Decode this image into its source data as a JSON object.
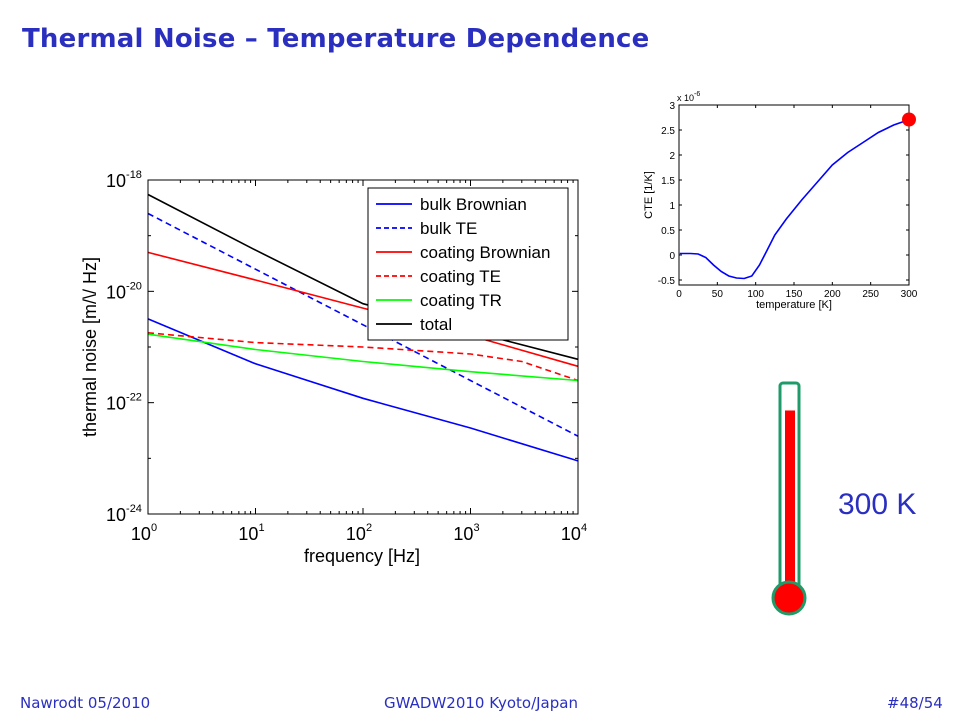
{
  "slide": {
    "title": "Thermal Noise – Temperature Dependence",
    "temperature_label": "300 K",
    "footer_left": "Nawrodt 05/2010",
    "footer_center": "GWADW2010 Kyoto/Japan",
    "footer_right": "#48/54"
  },
  "thermometer": {
    "level_fraction": 0.88,
    "bulb_color": "#ff0000",
    "tube_color": "#1f9b6a"
  },
  "chart_data": [
    {
      "type": "line",
      "xlabel": "frequency [Hz]",
      "ylabel": "thermal noise [m/\\/ Hz]",
      "xscale": "log",
      "yscale": "log",
      "xlim": [
        1,
        10000
      ],
      "ylim": [
        1e-24,
        1e-18
      ],
      "xticks": [
        {
          "base": "10",
          "exp": "0"
        },
        {
          "base": "10",
          "exp": "1"
        },
        {
          "base": "10",
          "exp": "2"
        },
        {
          "base": "10",
          "exp": "3"
        },
        {
          "base": "10",
          "exp": "4"
        }
      ],
      "yticks": [
        {
          "base": "10",
          "exp": "-24"
        },
        {
          "base": "10",
          "exp": "-22"
        },
        {
          "base": "10",
          "exp": "-20"
        },
        {
          "base": "10",
          "exp": "-18"
        }
      ],
      "grid": false,
      "legend_position": "top-right",
      "series": [
        {
          "name": "bulk Brownian",
          "color": "#0000ff",
          "dash": "solid",
          "x": [
            1,
            10,
            100,
            1000,
            10000
          ],
          "y": [
            3.2e-21,
            5e-22,
            1.2e-22,
            3.5e-23,
            9e-24
          ]
        },
        {
          "name": "bulk TE",
          "color": "#0000ff",
          "dash": "dashed",
          "x": [
            1,
            10,
            100,
            1000,
            10000
          ],
          "y": [
            2.5e-19,
            2.5e-20,
            2.5e-21,
            2.5e-22,
            2.5e-23
          ]
        },
        {
          "name": "coating Brownian",
          "color": "#ff0000",
          "dash": "solid",
          "x": [
            1,
            10,
            100,
            1000,
            10000
          ],
          "y": [
            5e-20,
            1.6e-20,
            5e-21,
            1.6e-21,
            4.5e-22
          ]
        },
        {
          "name": "coating TE",
          "color": "#ff0000",
          "dash": "dashed",
          "x": [
            1,
            10,
            100,
            1000,
            3000,
            10000
          ],
          "y": [
            1.8e-21,
            1.2e-21,
            1e-21,
            7.5e-22,
            5.5e-22,
            2.5e-22
          ]
        },
        {
          "name": "coating TR",
          "color": "#00ff00",
          "dash": "solid",
          "x": [
            1,
            10,
            100,
            1000,
            10000
          ],
          "y": [
            1.7e-21,
            9e-22,
            5.5e-22,
            3.6e-22,
            2.5e-22
          ]
        },
        {
          "name": "total",
          "color": "#000000",
          "dash": "solid",
          "x": [
            1,
            10,
            100,
            1000,
            10000
          ],
          "y": [
            5.5e-19,
            5.5e-20,
            6e-21,
            1.9e-21,
            6e-22
          ]
        }
      ]
    },
    {
      "type": "line",
      "xlabel": "temperature [K]",
      "ylabel": "CTE [1/K]",
      "y_multiplier": {
        "base": "x 10",
        "exp": "-6"
      },
      "xlim": [
        0,
        300
      ],
      "ylim": [
        -0.6,
        3
      ],
      "xticks": [
        0,
        50,
        100,
        150,
        200,
        250,
        300
      ],
      "yticks": [
        -0.5,
        0,
        0.5,
        1,
        1.5,
        2,
        2.5,
        3
      ],
      "ytick_labels": [
        "-0.5",
        "0",
        "0.5",
        "1",
        "1.5",
        "2",
        "2.5",
        "3"
      ],
      "grid": false,
      "marker": {
        "x": 300,
        "y": 2.65,
        "color": "#ff0000"
      },
      "series": [
        {
          "color": "#0000ff",
          "x": [
            1,
            15,
            25,
            35,
            45,
            55,
            65,
            75,
            85,
            95,
            105,
            115,
            125,
            140,
            160,
            180,
            200,
            220,
            240,
            260,
            280,
            295
          ],
          "y": [
            0.03,
            0.03,
            0.02,
            -0.05,
            -0.2,
            -0.33,
            -0.42,
            -0.46,
            -0.47,
            -0.42,
            -0.2,
            0.1,
            0.4,
            0.72,
            1.1,
            1.45,
            1.8,
            2.05,
            2.25,
            2.45,
            2.6,
            2.68
          ]
        }
      ]
    }
  ]
}
